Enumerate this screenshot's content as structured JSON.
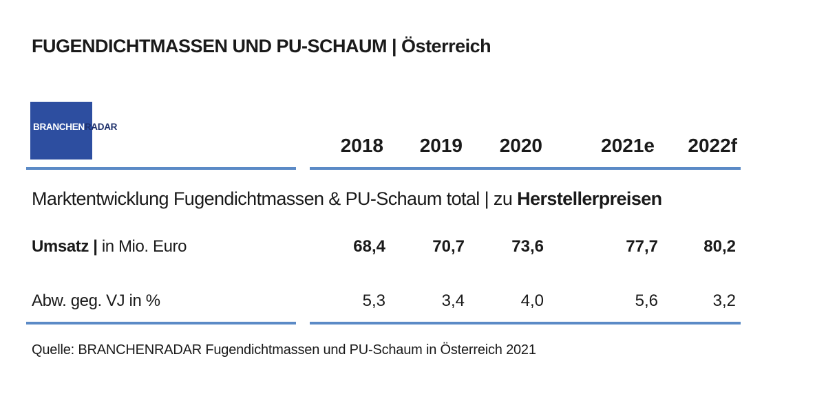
{
  "chart_data": {
    "type": "table",
    "title": "FUGENDICHTMASSEN UND PU-SCHAUM | Österreich",
    "logo": {
      "part1": "BRANCHEN",
      "part2": "RADAR"
    },
    "years": [
      "2018",
      "2019",
      "2020",
      "2021e",
      "2022f"
    ],
    "subtitle": {
      "prefix": "Marktentwicklung Fugendichtmassen & PU-Schaum total | zu ",
      "emphasis": "Herstellerpreisen"
    },
    "rows": [
      {
        "label_bold": "Umsatz |",
        "label_rest": " in Mio. Euro",
        "values": [
          "68,4",
          "70,7",
          "73,6",
          "77,7",
          "80,2"
        ]
      },
      {
        "label_bold": "",
        "label_rest": "Abw. geg. VJ in %",
        "values": [
          "5,3",
          "3,4",
          "4,0",
          "5,6",
          "3,2"
        ]
      }
    ],
    "source": "Quelle: BRANCHENRADAR Fugendichtmassen und PU-Schaum in Österreich 2021",
    "colors": {
      "rule": "#5b8ac6",
      "logo_bg": "#2d4ea0"
    }
  }
}
